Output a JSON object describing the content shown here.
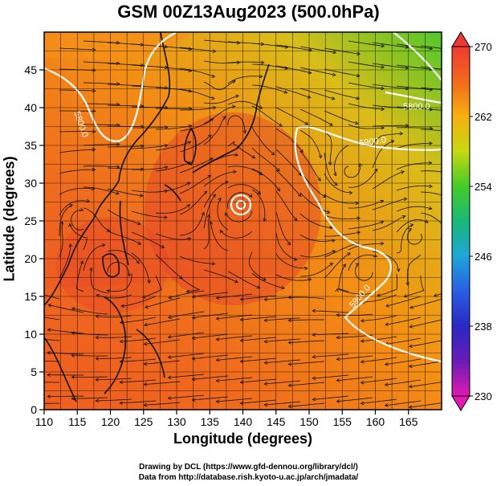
{
  "title": "GSM 00Z13Aug2023 (500.0hPa)",
  "axes": {
    "xlabel": "Longitude (degrees)",
    "ylabel": "Latitude (degrees)",
    "xticks": [
      "110",
      "115",
      "120",
      "125",
      "130",
      "135",
      "140",
      "145",
      "150",
      "155",
      "160",
      "165"
    ],
    "yticks": [
      "0",
      "5",
      "10",
      "15",
      "20",
      "25",
      "30",
      "35",
      "40",
      "45"
    ],
    "xlim": [
      110,
      170
    ],
    "ylim": [
      0,
      50
    ]
  },
  "colorbar": {
    "labels": [
      "270",
      "262",
      "254",
      "246",
      "238",
      "230"
    ],
    "range": [
      230,
      270
    ]
  },
  "contours": {
    "labels": [
      "5800.0",
      "5900.0",
      "5900.0",
      "5800.0"
    ]
  },
  "credits": {
    "line1": "Drawing by DCL (https://www.gfd-dennou.org/library/dcl/)",
    "line2": "Data from http://database.rish.kyoto-u.ac.jp/arch/jmadata/"
  },
  "colors": {
    "field_warm": "#e8402a",
    "field_mid": "#f06a1e",
    "field_cool": "#36d42a",
    "contour": "#ffffff"
  }
}
